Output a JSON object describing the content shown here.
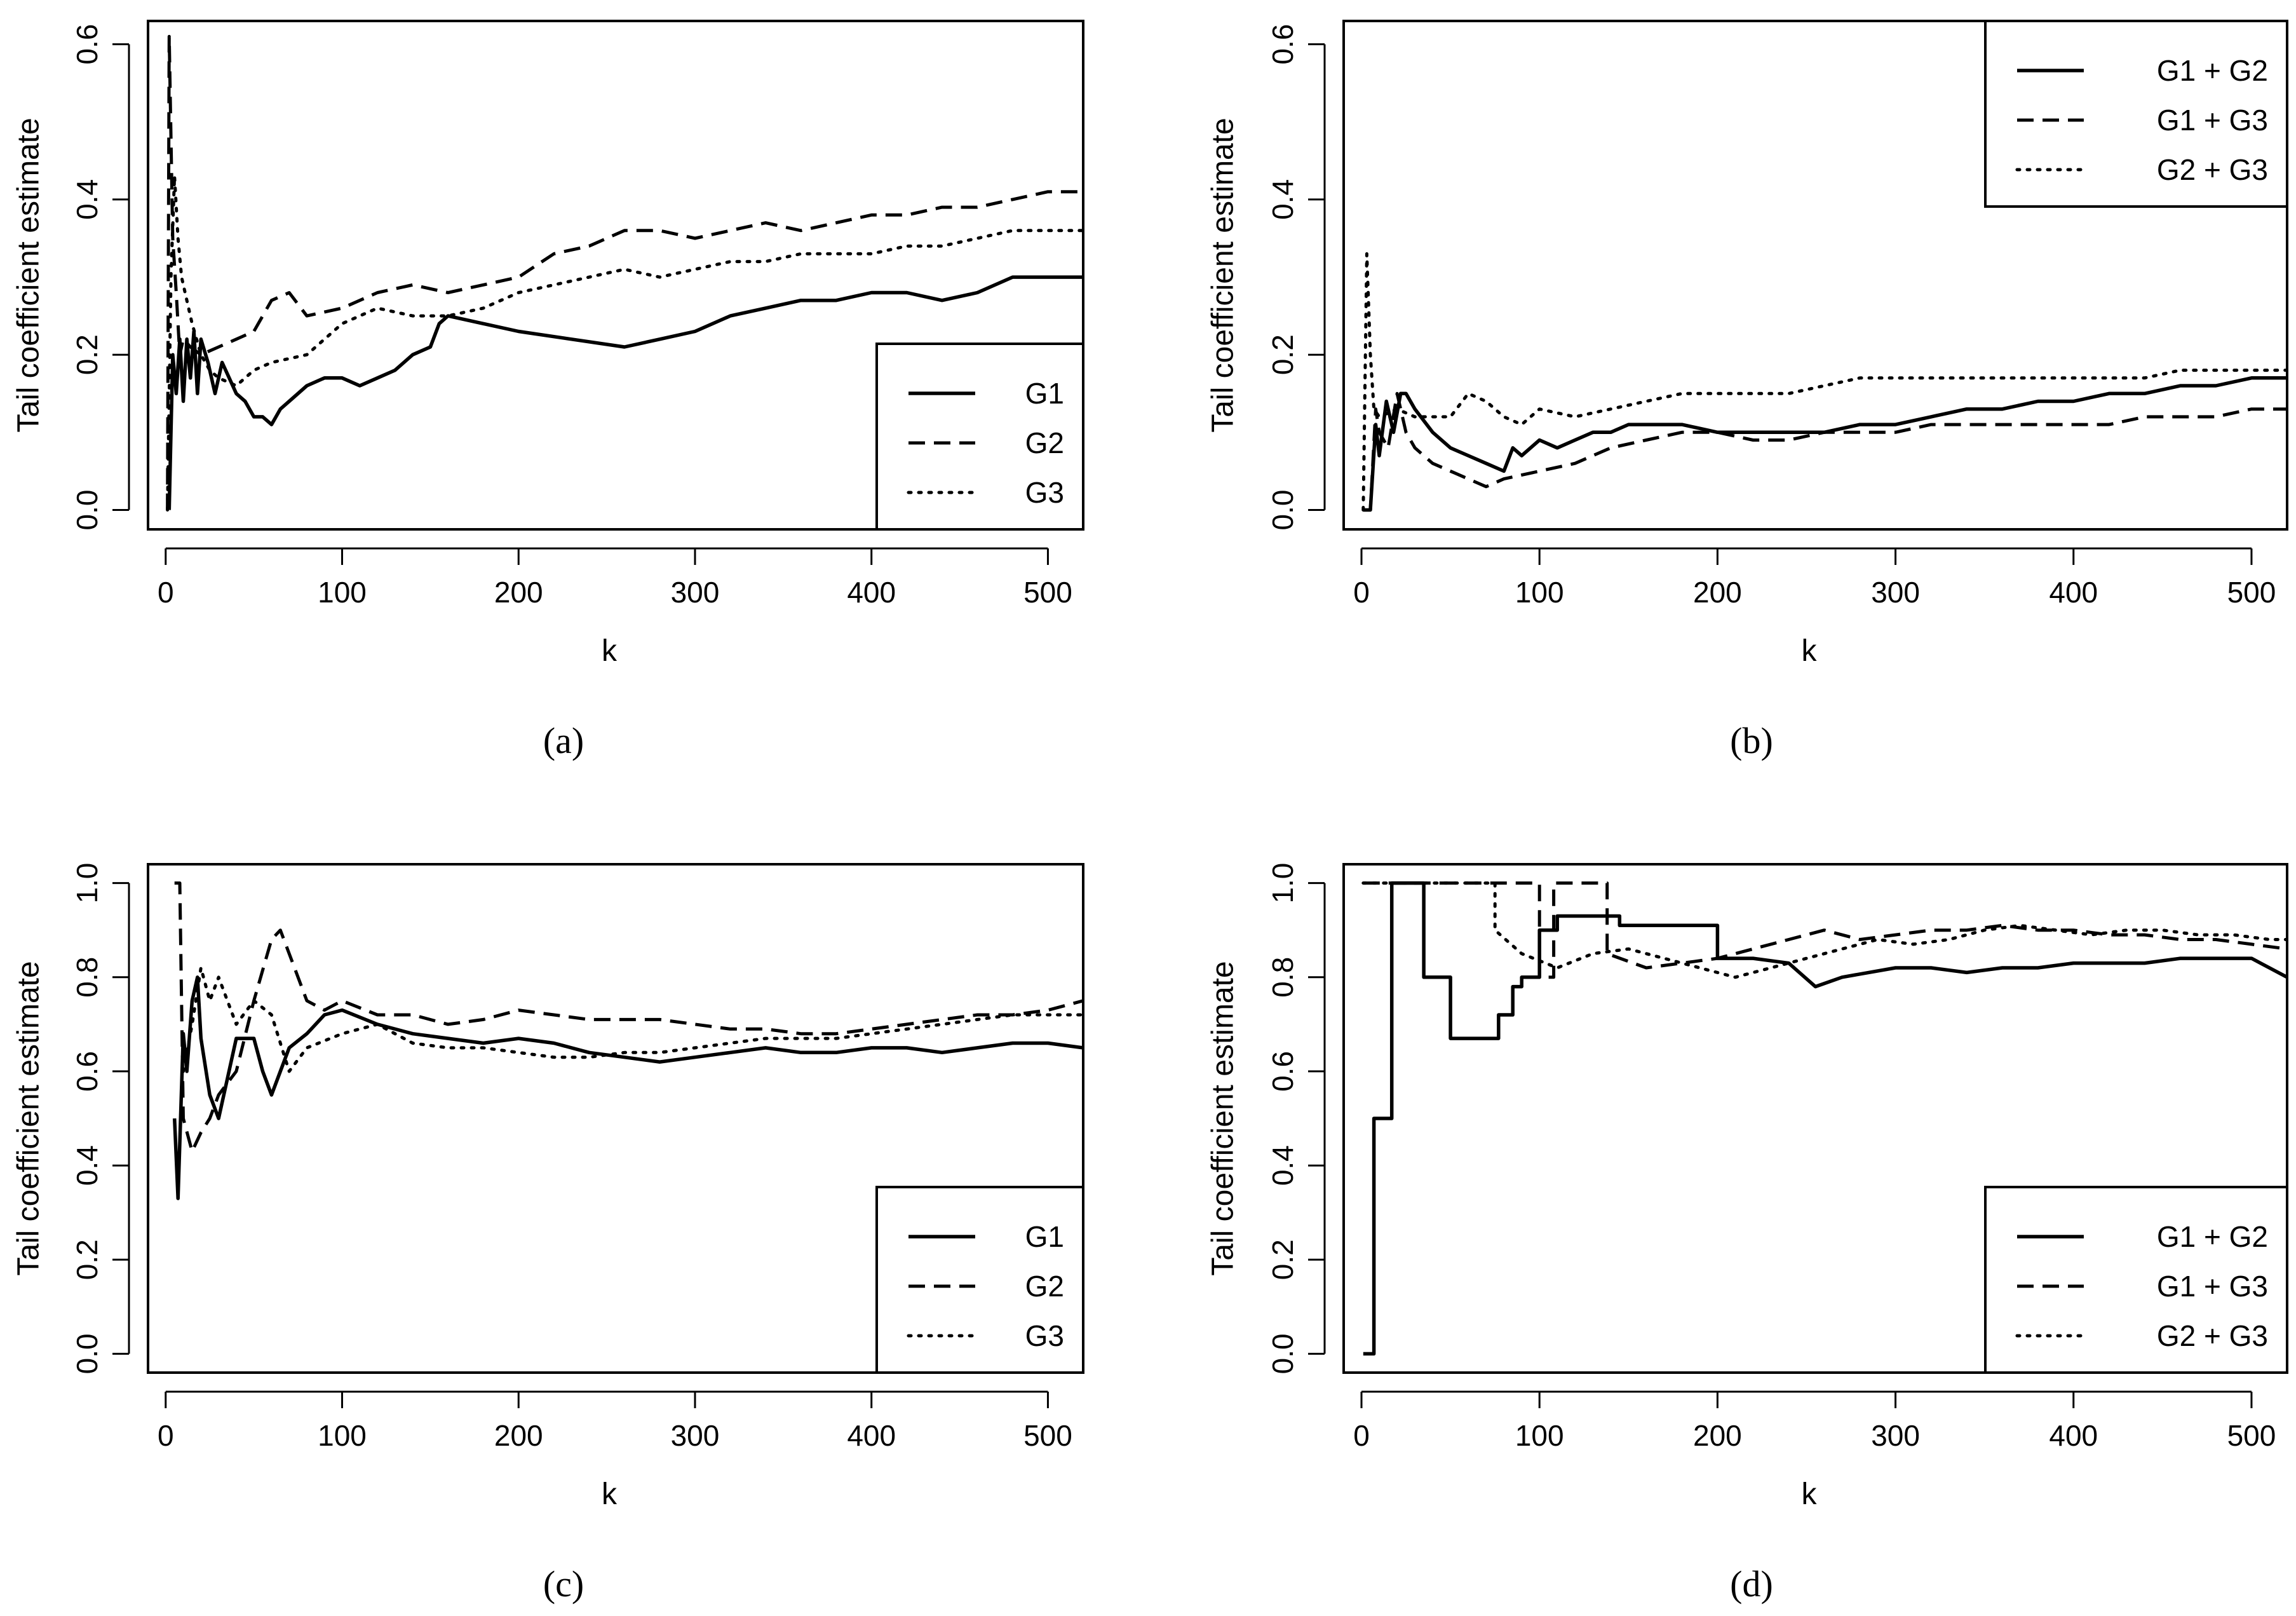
{
  "chart_data": [
    {
      "id": "a",
      "type": "line",
      "caption": "(a)",
      "xlabel": "k",
      "ylabel": "Tail coefficient estimate",
      "xlim": [
        -10,
        520
      ],
      "ylim": [
        -0.025,
        0.63
      ],
      "xticks": [
        0,
        100,
        200,
        300,
        400,
        500
      ],
      "yticks": [
        0.0,
        0.2,
        0.4,
        0.6
      ],
      "ytick_labels": [
        "0.0",
        "0.2",
        "0.4",
        "0.6"
      ],
      "legend_position": "bottom-right",
      "series": [
        {
          "name": "G1",
          "style": "solid",
          "x": [
            2,
            4,
            6,
            8,
            10,
            12,
            14,
            16,
            18,
            20,
            24,
            28,
            32,
            36,
            40,
            45,
            50,
            55,
            60,
            65,
            70,
            80,
            90,
            100,
            110,
            120,
            130,
            140,
            150,
            155,
            160,
            180,
            200,
            230,
            260,
            280,
            300,
            320,
            340,
            360,
            380,
            400,
            420,
            440,
            460,
            480,
            500,
            520
          ],
          "y": [
            0.0,
            0.2,
            0.15,
            0.22,
            0.14,
            0.22,
            0.17,
            0.23,
            0.15,
            0.22,
            0.19,
            0.15,
            0.19,
            0.17,
            0.15,
            0.14,
            0.12,
            0.12,
            0.11,
            0.13,
            0.14,
            0.16,
            0.17,
            0.17,
            0.16,
            0.17,
            0.18,
            0.2,
            0.21,
            0.24,
            0.25,
            0.24,
            0.23,
            0.22,
            0.21,
            0.22,
            0.23,
            0.25,
            0.26,
            0.27,
            0.27,
            0.28,
            0.28,
            0.27,
            0.28,
            0.3,
            0.3,
            0.3
          ]
        },
        {
          "name": "G2",
          "style": "dashed",
          "x": [
            1,
            2,
            4,
            6,
            8,
            10,
            14,
            20,
            30,
            40,
            50,
            60,
            70,
            80,
            100,
            120,
            140,
            160,
            180,
            200,
            220,
            240,
            260,
            280,
            300,
            320,
            340,
            360,
            380,
            400,
            420,
            440,
            460,
            480,
            500,
            520
          ],
          "y": [
            0.0,
            0.61,
            0.35,
            0.28,
            0.2,
            0.22,
            0.21,
            0.2,
            0.21,
            0.22,
            0.23,
            0.27,
            0.28,
            0.25,
            0.26,
            0.28,
            0.29,
            0.28,
            0.29,
            0.3,
            0.33,
            0.34,
            0.36,
            0.36,
            0.35,
            0.36,
            0.37,
            0.36,
            0.37,
            0.38,
            0.38,
            0.39,
            0.39,
            0.4,
            0.41,
            0.41
          ]
        },
        {
          "name": "G3",
          "style": "dotted",
          "x": [
            1,
            3,
            5,
            7,
            9,
            12,
            15,
            20,
            25,
            30,
            40,
            50,
            60,
            80,
            100,
            120,
            140,
            160,
            180,
            200,
            220,
            240,
            260,
            280,
            300,
            320,
            340,
            360,
            380,
            400,
            420,
            440,
            460,
            480,
            500,
            520
          ],
          "y": [
            0.0,
            0.3,
            0.43,
            0.35,
            0.3,
            0.27,
            0.24,
            0.2,
            0.18,
            0.17,
            0.16,
            0.18,
            0.19,
            0.2,
            0.24,
            0.26,
            0.25,
            0.25,
            0.26,
            0.28,
            0.29,
            0.3,
            0.31,
            0.3,
            0.31,
            0.32,
            0.32,
            0.33,
            0.33,
            0.33,
            0.34,
            0.34,
            0.35,
            0.36,
            0.36,
            0.36
          ]
        }
      ]
    },
    {
      "id": "b",
      "type": "line",
      "caption": "(b)",
      "xlabel": "k",
      "ylabel": "Tail coefficient estimate",
      "xlim": [
        -10,
        520
      ],
      "ylim": [
        -0.025,
        0.63
      ],
      "xticks": [
        0,
        100,
        200,
        300,
        400,
        500
      ],
      "yticks": [
        0.0,
        0.2,
        0.4,
        0.6
      ],
      "ytick_labels": [
        "0.0",
        "0.2",
        "0.4",
        "0.6"
      ],
      "legend_position": "top-right",
      "series": [
        {
          "name": "G1 + G2",
          "style": "solid",
          "x": [
            1,
            5,
            8,
            10,
            14,
            18,
            22,
            25,
            30,
            40,
            50,
            60,
            70,
            80,
            85,
            90,
            100,
            110,
            120,
            130,
            140,
            150,
            160,
            170,
            180,
            200,
            220,
            240,
            260,
            280,
            300,
            320,
            340,
            360,
            380,
            400,
            420,
            440,
            460,
            480,
            500,
            520
          ],
          "y": [
            0.0,
            0.0,
            0.11,
            0.07,
            0.14,
            0.1,
            0.15,
            0.15,
            0.13,
            0.1,
            0.08,
            0.07,
            0.06,
            0.05,
            0.08,
            0.07,
            0.09,
            0.08,
            0.09,
            0.1,
            0.1,
            0.11,
            0.11,
            0.11,
            0.11,
            0.1,
            0.1,
            0.1,
            0.1,
            0.11,
            0.11,
            0.12,
            0.13,
            0.13,
            0.14,
            0.14,
            0.15,
            0.15,
            0.16,
            0.16,
            0.17,
            0.17
          ]
        },
        {
          "name": "G1 + G3",
          "style": "dashed",
          "x": [
            1,
            5,
            8,
            10,
            15,
            20,
            25,
            30,
            40,
            50,
            60,
            70,
            80,
            100,
            120,
            140,
            160,
            180,
            200,
            220,
            240,
            260,
            280,
            300,
            320,
            340,
            360,
            380,
            400,
            420,
            440,
            460,
            480,
            500,
            520
          ],
          "y": [
            0.0,
            0.0,
            0.13,
            0.1,
            0.08,
            0.15,
            0.1,
            0.08,
            0.06,
            0.05,
            0.04,
            0.03,
            0.04,
            0.05,
            0.06,
            0.08,
            0.09,
            0.1,
            0.1,
            0.09,
            0.09,
            0.1,
            0.1,
            0.1,
            0.11,
            0.11,
            0.11,
            0.11,
            0.11,
            0.11,
            0.12,
            0.12,
            0.12,
            0.13,
            0.13
          ]
        },
        {
          "name": "G2 + G3",
          "style": "dotted",
          "x": [
            1,
            3,
            5,
            7,
            10,
            20,
            30,
            40,
            50,
            60,
            70,
            80,
            90,
            100,
            120,
            140,
            160,
            180,
            200,
            220,
            240,
            260,
            280,
            300,
            320,
            340,
            360,
            380,
            400,
            420,
            440,
            460,
            480,
            500,
            520
          ],
          "y": [
            0.0,
            0.33,
            0.2,
            0.13,
            0.12,
            0.13,
            0.12,
            0.12,
            0.12,
            0.15,
            0.14,
            0.12,
            0.11,
            0.13,
            0.12,
            0.13,
            0.14,
            0.15,
            0.15,
            0.15,
            0.15,
            0.16,
            0.17,
            0.17,
            0.17,
            0.17,
            0.17,
            0.17,
            0.17,
            0.17,
            0.17,
            0.18,
            0.18,
            0.18,
            0.18
          ]
        }
      ]
    },
    {
      "id": "c",
      "type": "line",
      "caption": "(c)",
      "xlabel": "k",
      "ylabel": "Tail coefficient estimate",
      "xlim": [
        -10,
        520
      ],
      "ylim": [
        -0.04,
        1.04
      ],
      "xticks": [
        0,
        100,
        200,
        300,
        400,
        500
      ],
      "yticks": [
        0.0,
        0.2,
        0.4,
        0.6,
        0.8,
        1.0
      ],
      "ytick_labels": [
        "0.0",
        "0.2",
        "0.4",
        "0.6",
        "0.8",
        "1.0"
      ],
      "legend_position": "bottom-right",
      "series": [
        {
          "name": "G1",
          "style": "solid",
          "x": [
            5,
            7,
            10,
            12,
            15,
            18,
            20,
            25,
            30,
            40,
            50,
            55,
            60,
            65,
            70,
            80,
            90,
            100,
            120,
            140,
            160,
            180,
            200,
            220,
            240,
            260,
            280,
            300,
            320,
            340,
            360,
            380,
            400,
            420,
            440,
            460,
            480,
            500,
            520
          ],
          "y": [
            0.5,
            0.33,
            0.68,
            0.6,
            0.75,
            0.8,
            0.67,
            0.55,
            0.5,
            0.67,
            0.67,
            0.6,
            0.55,
            0.6,
            0.65,
            0.68,
            0.72,
            0.73,
            0.7,
            0.68,
            0.67,
            0.66,
            0.67,
            0.66,
            0.64,
            0.63,
            0.62,
            0.63,
            0.64,
            0.65,
            0.64,
            0.64,
            0.65,
            0.65,
            0.64,
            0.65,
            0.66,
            0.66,
            0.65
          ]
        },
        {
          "name": "G2",
          "style": "dashed",
          "x": [
            5,
            8,
            10,
            15,
            20,
            25,
            30,
            40,
            50,
            60,
            65,
            70,
            80,
            90,
            100,
            120,
            140,
            160,
            180,
            200,
            220,
            240,
            260,
            280,
            300,
            320,
            340,
            360,
            380,
            400,
            420,
            440,
            460,
            480,
            500,
            520
          ],
          "y": [
            1.0,
            1.0,
            0.5,
            0.43,
            0.47,
            0.5,
            0.55,
            0.6,
            0.75,
            0.88,
            0.9,
            0.85,
            0.75,
            0.73,
            0.75,
            0.72,
            0.72,
            0.7,
            0.71,
            0.73,
            0.72,
            0.71,
            0.71,
            0.71,
            0.7,
            0.69,
            0.69,
            0.68,
            0.68,
            0.69,
            0.7,
            0.71,
            0.72,
            0.72,
            0.73,
            0.75
          ]
        },
        {
          "name": "G3",
          "style": "dotted",
          "x": [
            10,
            15,
            20,
            25,
            30,
            40,
            50,
            60,
            70,
            80,
            100,
            120,
            140,
            160,
            180,
            200,
            220,
            240,
            260,
            280,
            300,
            320,
            340,
            360,
            380,
            400,
            420,
            440,
            460,
            480,
            500,
            520
          ],
          "y": [
            0.6,
            0.7,
            0.82,
            0.75,
            0.8,
            0.7,
            0.75,
            0.72,
            0.6,
            0.65,
            0.68,
            0.7,
            0.66,
            0.65,
            0.65,
            0.64,
            0.63,
            0.63,
            0.64,
            0.64,
            0.65,
            0.66,
            0.67,
            0.67,
            0.67,
            0.68,
            0.69,
            0.7,
            0.71,
            0.72,
            0.72,
            0.72
          ]
        }
      ]
    },
    {
      "id": "d",
      "type": "line",
      "caption": "(d)",
      "xlabel": "k",
      "ylabel": "Tail coefficient estimate",
      "xlim": [
        -10,
        520
      ],
      "ylim": [
        -0.04,
        1.04
      ],
      "xticks": [
        0,
        100,
        200,
        300,
        400,
        500
      ],
      "yticks": [
        0.0,
        0.2,
        0.4,
        0.6,
        0.8,
        1.0
      ],
      "ytick_labels": [
        "0.0",
        "0.2",
        "0.4",
        "0.6",
        "0.8",
        "1.0"
      ],
      "legend_position": "bottom-right",
      "series": [
        {
          "name": "G1 + G2",
          "style": "solid",
          "x": [
            1,
            7,
            7,
            17,
            17,
            35,
            35,
            50,
            50,
            77,
            77,
            85,
            85,
            90,
            90,
            100,
            100,
            110,
            110,
            145,
            145,
            200,
            200,
            220,
            240,
            255,
            270,
            300,
            320,
            340,
            360,
            380,
            400,
            420,
            440,
            460,
            480,
            500,
            520
          ],
          "y": [
            0.0,
            0.0,
            0.5,
            0.5,
            1.0,
            1.0,
            0.8,
            0.8,
            0.67,
            0.67,
            0.72,
            0.72,
            0.78,
            0.78,
            0.8,
            0.8,
            0.9,
            0.9,
            0.93,
            0.93,
            0.91,
            0.91,
            0.84,
            0.84,
            0.83,
            0.78,
            0.8,
            0.82,
            0.82,
            0.81,
            0.82,
            0.82,
            0.83,
            0.83,
            0.83,
            0.84,
            0.84,
            0.84,
            0.8
          ]
        },
        {
          "name": "G1 + G3",
          "style": "dashed",
          "x": [
            1,
            100,
            100,
            108,
            108,
            138,
            138,
            160,
            180,
            200,
            220,
            240,
            260,
            280,
            300,
            320,
            340,
            360,
            380,
            400,
            420,
            440,
            460,
            480,
            500,
            520
          ],
          "y": [
            1.0,
            1.0,
            0.8,
            0.8,
            1.0,
            1.0,
            0.85,
            0.82,
            0.83,
            0.84,
            0.86,
            0.88,
            0.9,
            0.88,
            0.89,
            0.9,
            0.9,
            0.91,
            0.9,
            0.9,
            0.89,
            0.89,
            0.88,
            0.88,
            0.87,
            0.86
          ]
        },
        {
          "name": "G2 + G3",
          "style": "dotted",
          "x": [
            1,
            75,
            75,
            90,
            110,
            130,
            150,
            170,
            190,
            210,
            230,
            250,
            270,
            290,
            310,
            330,
            350,
            370,
            390,
            410,
            430,
            450,
            470,
            490,
            510,
            520
          ],
          "y": [
            1.0,
            1.0,
            0.9,
            0.85,
            0.82,
            0.85,
            0.86,
            0.84,
            0.82,
            0.8,
            0.82,
            0.84,
            0.86,
            0.88,
            0.87,
            0.88,
            0.9,
            0.91,
            0.9,
            0.89,
            0.9,
            0.9,
            0.89,
            0.89,
            0.88,
            0.88
          ]
        }
      ]
    }
  ]
}
